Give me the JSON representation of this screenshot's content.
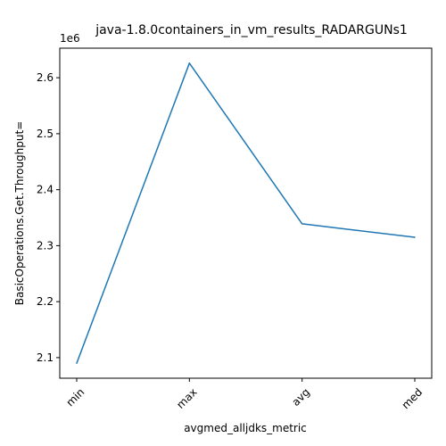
{
  "chart_data": {
    "type": "line",
    "title": "java-1.8.0containers_in_vm_results_RADARGUNs1",
    "xlabel": "avgmed_alljdks_metric",
    "ylabel": "BasicOperations.Get.Throughput=",
    "y_offset_label": "1e6",
    "categories": [
      "min",
      "max",
      "avg",
      "med"
    ],
    "series": [
      {
        "values": [
          2090000,
          2626000,
          2339000,
          2315000
        ]
      }
    ],
    "y_ticks": [
      2.1,
      2.2,
      2.3,
      2.4,
      2.5,
      2.6
    ],
    "y_tick_labels": [
      "2.1",
      "2.2",
      "2.3",
      "2.4",
      "2.5",
      "2.6"
    ],
    "y_scale": 1000000,
    "ylim": [
      2063200,
      2652800
    ],
    "grid": false,
    "line_color": "#1f77b4"
  }
}
